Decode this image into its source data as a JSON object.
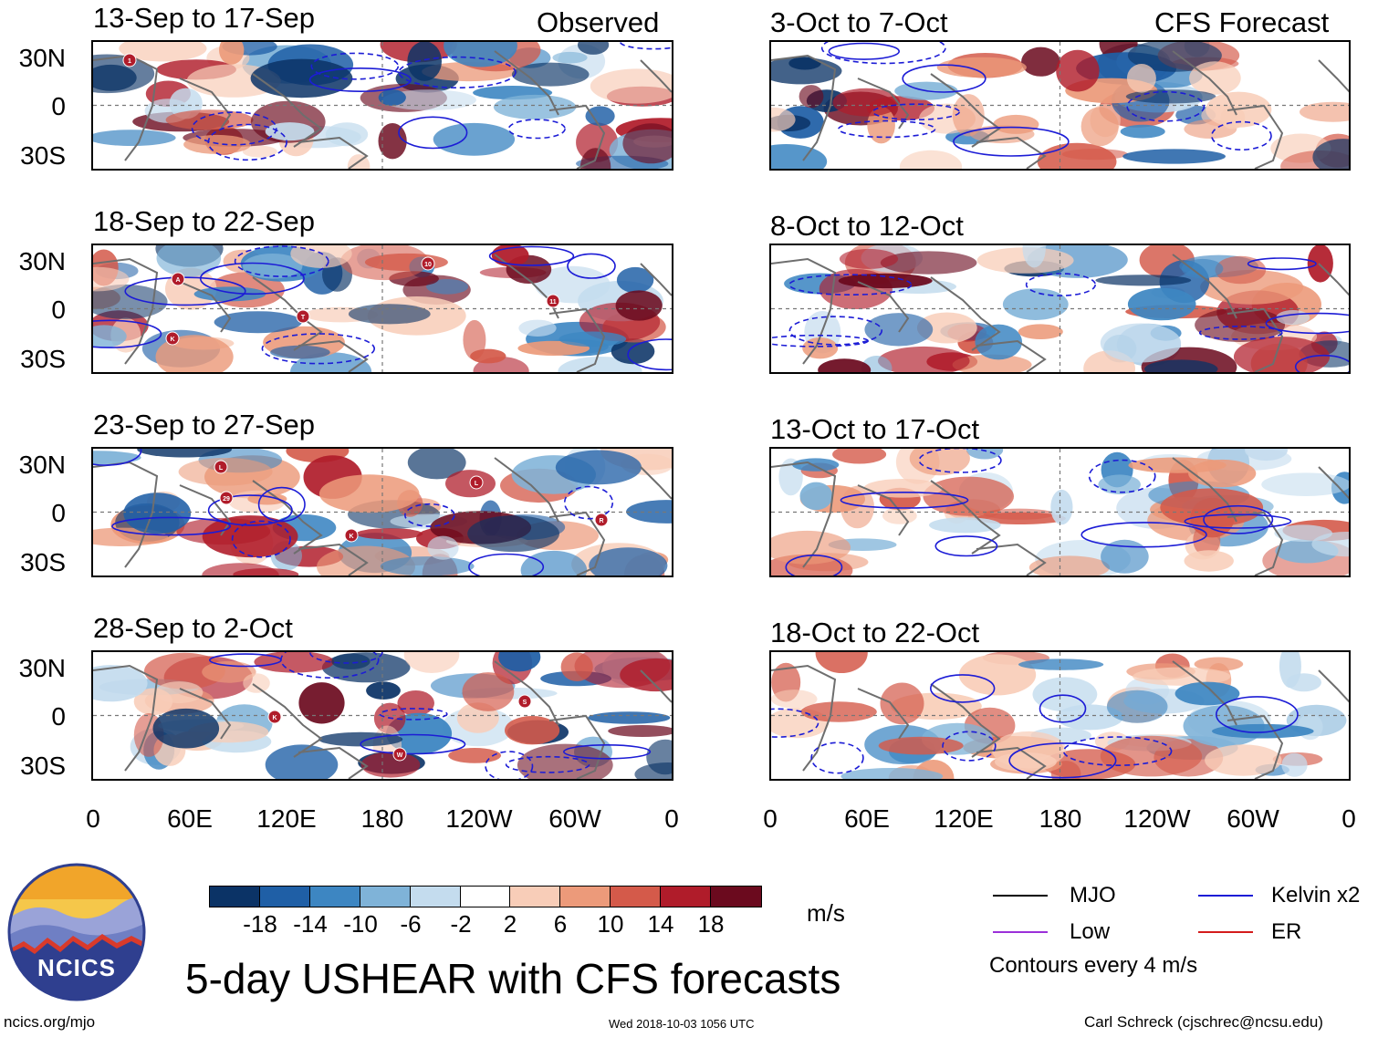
{
  "title": "5-day USHEAR with CFS forecasts",
  "observed_label": "Observed",
  "forecast_label": "CFS Forecast",
  "observed_panels": [
    {
      "period": "13-Sep to 17-Sep",
      "storms": [
        "1"
      ]
    },
    {
      "period": "18-Sep to 22-Sep",
      "storms": [
        "A",
        "T",
        "10",
        "11",
        "K"
      ]
    },
    {
      "period": "23-Sep to 27-Sep",
      "storms": [
        "29",
        "K",
        "L",
        "R",
        "L"
      ]
    },
    {
      "period": "28-Sep to 2-Oct",
      "storms": [
        "K",
        "W",
        "S"
      ]
    }
  ],
  "forecast_panels": [
    {
      "period": "3-Oct to 7-Oct"
    },
    {
      "period": "8-Oct to 12-Oct"
    },
    {
      "period": "13-Oct to 17-Oct"
    },
    {
      "period": "18-Oct to 22-Oct"
    }
  ],
  "y_ticks": [
    "30N",
    "0",
    "30S"
  ],
  "x_ticks": [
    "0",
    "60E",
    "120E",
    "180",
    "120W",
    "60W",
    "0"
  ],
  "colorbar": {
    "ticks": [
      "-18",
      "-14",
      "-10",
      "-6",
      "-2",
      "2",
      "6",
      "10",
      "14",
      "18"
    ],
    "colors": [
      "#0b3366",
      "#1f5fa6",
      "#3d86c2",
      "#7fb3d8",
      "#c4dcee",
      "#ffffff",
      "#f8cdb8",
      "#ec9a7a",
      "#d45a4a",
      "#b01c2a",
      "#6b0a1e"
    ],
    "units": "m/s"
  },
  "legend": {
    "items": [
      {
        "label": "MJO",
        "color": "#000000"
      },
      {
        "label": "Kelvin x2",
        "color": "#1c1cd6"
      },
      {
        "label": "Low",
        "color": "#9b30d9"
      },
      {
        "label": "ER",
        "color": "#d41c1c"
      }
    ],
    "note": "Contours every 4 m/s"
  },
  "logo_text": "NCICS",
  "footer": {
    "left": "ncics.org/mjo",
    "center": "Wed 2018-10-03 1056 UTC",
    "right": "Carl Schreck (cjschrec@ncsu.edu)"
  }
}
